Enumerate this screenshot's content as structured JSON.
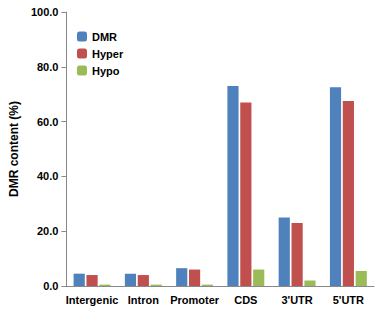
{
  "chart_data": {
    "type": "bar",
    "categories": [
      "Intergenic",
      "Intron",
      "Promoter",
      "CDS",
      "3'UTR",
      "5'UTR"
    ],
    "series": [
      {
        "name": "DMR",
        "color": "#4f81bd",
        "values": [
          4.5,
          4.5,
          6.5,
          73.0,
          25.0,
          72.5
        ]
      },
      {
        "name": "Hyper",
        "color": "#c0504d",
        "values": [
          4.0,
          4.0,
          6.0,
          67.0,
          23.0,
          67.5
        ]
      },
      {
        "name": "Hypo",
        "color": "#9bbb59",
        "values": [
          0.5,
          0.5,
          0.5,
          6.0,
          2.0,
          5.5
        ]
      }
    ],
    "ylabel": "DMR content (%)",
    "ylim": [
      0,
      100
    ],
    "yticks": [
      {
        "value": 0,
        "label": "0.0"
      },
      {
        "value": 20,
        "label": "20.0"
      },
      {
        "value": 40,
        "label": "40.0"
      },
      {
        "value": 60,
        "label": "60.0"
      },
      {
        "value": 80,
        "label": "80.0"
      },
      {
        "value": 100,
        "label": "100.0"
      }
    ],
    "grid": false,
    "legend": "upper left"
  }
}
